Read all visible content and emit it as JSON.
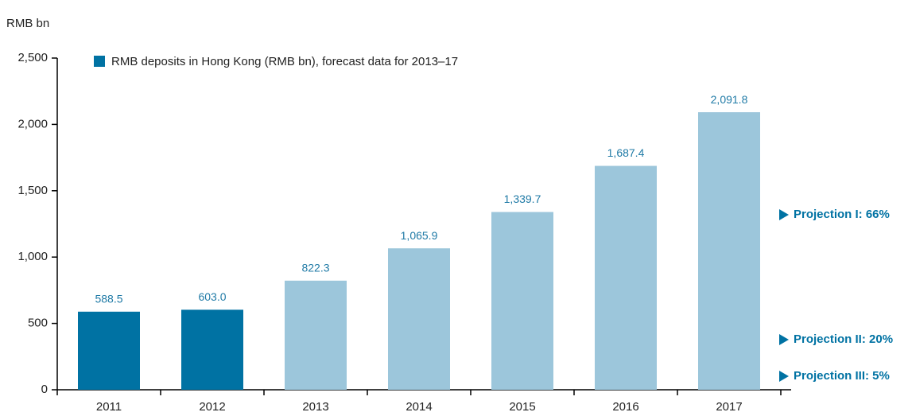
{
  "chart_data": {
    "type": "bar",
    "y_axis_label": "RMB bn",
    "series": [
      {
        "name": "RMB deposits in Hong Kong (RMB bn), forecast data for 2013–17",
        "color": "#0072a3"
      }
    ],
    "categories": [
      "2011",
      "2012",
      "2013",
      "2014",
      "2015",
      "2016",
      "2017"
    ],
    "values": [
      588.5,
      603.0,
      822.3,
      1065.9,
      1339.7,
      1687.4,
      2091.8
    ],
    "value_labels": [
      "588.5",
      "603.0",
      "822.3",
      "1,065.9",
      "1,339.7",
      "1,687.4",
      "2,091.8"
    ],
    "colors": [
      "#0072a3",
      "#0072a3",
      "#9cc6db",
      "#9cc6db",
      "#9cc6db",
      "#9cc6db",
      "#9cc6db"
    ],
    "ylim": [
      0,
      2500
    ],
    "yticks": [
      0,
      500,
      {
        "value": 1000,
        "label": "1,000"
      },
      {
        "value": 1500,
        "label": "1,500"
      },
      {
        "value": 2000,
        "label": "2,000"
      },
      {
        "value": 2500,
        "label": "2,500"
      }
    ],
    "annotations": [
      "Projection I: 66%",
      "Projection II: 20%",
      "Projection III: 5%"
    ]
  }
}
